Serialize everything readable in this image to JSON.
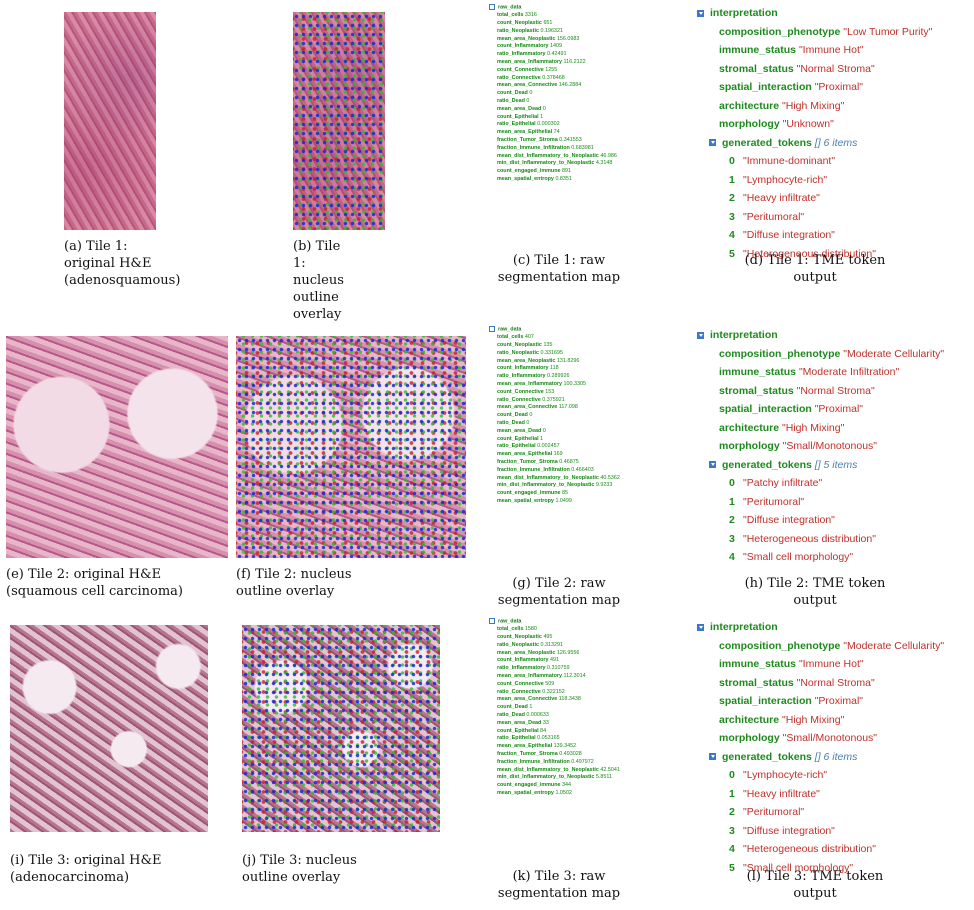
{
  "tiles": [
    {
      "caption_original": "(a) Tile 1: original H&E (adenosquamous)",
      "caption_overlay": "(b) Tile 1: nucleus outline overlay",
      "caption_raw": "(c) Tile 1: raw segmentation map",
      "caption_tokens": "(d) Tile 1: TME token output",
      "raw": [
        [
          "total_cells",
          "3316"
        ],
        [
          "count_Neoplastic",
          "651"
        ],
        [
          "ratio_Neoplastic",
          "0.196321"
        ],
        [
          "mean_area_Neoplastic",
          "156.0983"
        ],
        [
          "count_Inflammatory",
          "1409"
        ],
        [
          "ratio_Inflammatory",
          "0.42491"
        ],
        [
          "mean_area_Inflammatory",
          "116.2122"
        ],
        [
          "count_Connective",
          "1255"
        ],
        [
          "ratio_Connective",
          "0.378468"
        ],
        [
          "mean_area_Connective",
          "146.2884"
        ],
        [
          "count_Dead",
          "0"
        ],
        [
          "ratio_Dead",
          "0"
        ],
        [
          "mean_area_Dead",
          "0"
        ],
        [
          "count_Epithelial",
          "1"
        ],
        [
          "ratio_Epithelial",
          "0.000302"
        ],
        [
          "mean_area_Epithelial",
          "74"
        ],
        [
          "fraction_Tumor_Stroma",
          "0.341553"
        ],
        [
          "fraction_Immune_Infiltration",
          "0.683981"
        ],
        [
          "mean_dist_Inflammatory_to_Neoplastic",
          "46.986"
        ],
        [
          "min_dist_Inflammatory_to_Neoplastic",
          "4.3148"
        ],
        [
          "count_engaged_immune",
          "891"
        ],
        [
          "mean_spatial_entropy",
          "0.8351"
        ]
      ],
      "interp": [
        [
          "composition_phenotype",
          "\"Low Tumor Purity\""
        ],
        [
          "immune_status",
          "\"Immune Hot\""
        ],
        [
          "stromal_status",
          "\"Normal Stroma\""
        ],
        [
          "spatial_interaction",
          "\"Proximal\""
        ],
        [
          "architecture",
          "\"High Mixing\""
        ],
        [
          "morphology",
          "\"Unknown\""
        ]
      ],
      "tokens_meta": "[] 6 items",
      "tokens": [
        "\"Immune-dominant\"",
        "\"Lymphocyte-rich\"",
        "\"Heavy infiltrate\"",
        "\"Peritumoral\"",
        "\"Diffuse integration\"",
        "\"Heterogeneous distribution\""
      ]
    },
    {
      "caption_original": "(e) Tile 2: original H&E (squamous cell carcinoma)",
      "caption_overlay": "(f) Tile 2: nucleus outline overlay",
      "caption_raw": "(g) Tile 2: raw segmentation map",
      "caption_tokens": "(h) Tile 2: TME token output",
      "raw": [
        [
          "total_cells",
          "407"
        ],
        [
          "count_Neoplastic",
          "135"
        ],
        [
          "ratio_Neoplastic",
          "0.331695"
        ],
        [
          "mean_area_Neoplastic",
          "131.8296"
        ],
        [
          "count_Inflammatory",
          "118"
        ],
        [
          "ratio_Inflammatory",
          "0.289926"
        ],
        [
          "mean_area_Inflammatory",
          "100.3305"
        ],
        [
          "count_Connective",
          "153"
        ],
        [
          "ratio_Connective",
          "0.375921"
        ],
        [
          "mean_area_Connective",
          "117.098"
        ],
        [
          "count_Dead",
          "0"
        ],
        [
          "ratio_Dead",
          "0"
        ],
        [
          "mean_area_Dead",
          "0"
        ],
        [
          "count_Epithelial",
          "1"
        ],
        [
          "ratio_Epithelial",
          "0.002457"
        ],
        [
          "mean_area_Epithelial",
          "169"
        ],
        [
          "fraction_Tumor_Stroma",
          "0.46875"
        ],
        [
          "fraction_Immune_Infiltration",
          "0.466403"
        ],
        [
          "mean_dist_Inflammatory_to_Neoplastic",
          "40.5362"
        ],
        [
          "min_dist_Inflammatory_to_Neoplastic",
          "9.9233"
        ],
        [
          "count_engaged_immune",
          "85"
        ],
        [
          "mean_spatial_entropy",
          "1.0499"
        ]
      ],
      "interp": [
        [
          "composition_phenotype",
          "\"Moderate Cellularity\""
        ],
        [
          "immune_status",
          "\"Moderate Infiltration\""
        ],
        [
          "stromal_status",
          "\"Normal Stroma\""
        ],
        [
          "spatial_interaction",
          "\"Proximal\""
        ],
        [
          "architecture",
          "\"High Mixing\""
        ],
        [
          "morphology",
          "\"Small/Monotonous\""
        ]
      ],
      "tokens_meta": "[] 5 items",
      "tokens": [
        "\"Patchy infiltrate\"",
        "\"Peritumoral\"",
        "\"Diffuse integration\"",
        "\"Heterogeneous distribution\"",
        "\"Small cell morphology\""
      ]
    },
    {
      "caption_original": "(i) Tile 3: original H&E (adenocarcinoma)",
      "caption_overlay": "(j) Tile 3: nucleus outline overlay",
      "caption_raw": "(k) Tile 3: raw segmentation map",
      "caption_tokens": "(l) Tile 3: TME token output",
      "raw": [
        [
          "total_cells",
          "1580"
        ],
        [
          "count_Neoplastic",
          "495"
        ],
        [
          "ratio_Neoplastic",
          "0.313291"
        ],
        [
          "mean_area_Neoplastic",
          "126.9556"
        ],
        [
          "count_Inflammatory",
          "491"
        ],
        [
          "ratio_Inflammatory",
          "0.310759"
        ],
        [
          "mean_area_Inflammatory",
          "112.3014"
        ],
        [
          "count_Connective",
          "509"
        ],
        [
          "ratio_Connective",
          "0.322152"
        ],
        [
          "mean_area_Connective",
          "118.3438"
        ],
        [
          "count_Dead",
          "1"
        ],
        [
          "ratio_Dead",
          "0.000633"
        ],
        [
          "mean_area_Dead",
          "33"
        ],
        [
          "count_Epithelial",
          "84"
        ],
        [
          "ratio_Epithelial",
          "0.053165"
        ],
        [
          "mean_area_Epithelial",
          "139.3452"
        ],
        [
          "fraction_Tumor_Stroma",
          "0.493028"
        ],
        [
          "fraction_Immune_Infiltration",
          "0.497972"
        ],
        [
          "mean_dist_Inflammatory_to_Neoplastic",
          "42.5041"
        ],
        [
          "min_dist_Inflammatory_to_Neoplastic",
          "5.8511"
        ],
        [
          "count_engaged_immune",
          "344"
        ],
        [
          "mean_spatial_entropy",
          "1.0502"
        ]
      ],
      "interp": [
        [
          "composition_phenotype",
          "\"Moderate Cellularity\""
        ],
        [
          "immune_status",
          "\"Immune Hot\""
        ],
        [
          "stromal_status",
          "\"Normal Stroma\""
        ],
        [
          "spatial_interaction",
          "\"Proximal\""
        ],
        [
          "architecture",
          "\"High Mixing\""
        ],
        [
          "morphology",
          "\"Small/Monotonous\""
        ]
      ],
      "tokens_meta": "[] 6 items",
      "tokens": [
        "\"Lymphocyte-rich\"",
        "\"Heavy infiltrate\"",
        "\"Peritumoral\"",
        "\"Diffuse integration\"",
        "\"Heterogeneous distribution\"",
        "\"Small cell morphology\""
      ]
    }
  ],
  "labels": {
    "raw_header": "raw_data",
    "interp_header": "interpretation",
    "tokens_key": "generated_tokens"
  }
}
